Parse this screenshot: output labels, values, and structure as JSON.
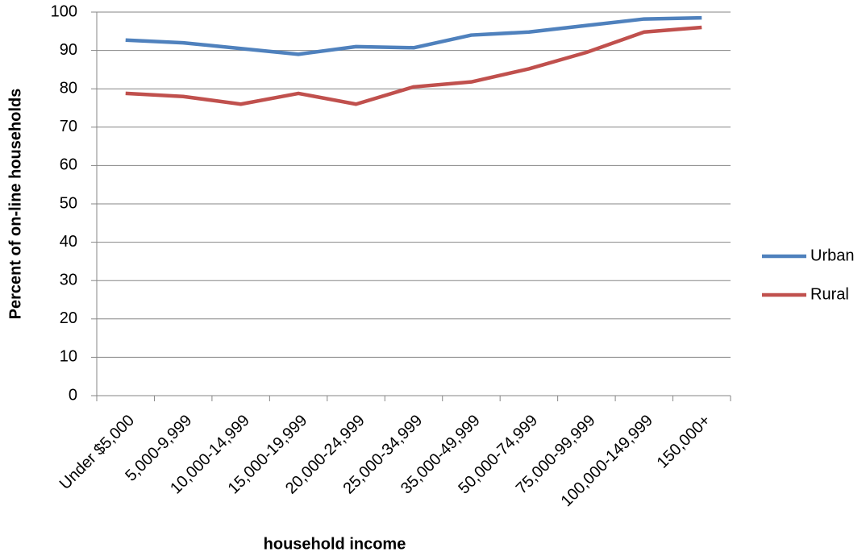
{
  "chart_data": {
    "type": "line",
    "xlabel": "household income",
    "ylabel": "Percent of on-line households",
    "categories": [
      "Under $5,000",
      "5,000-9,999",
      "10,000-14,999",
      "15,000-19,999",
      "20,000-24,999",
      "25,000-34,999",
      "35,000-49,999",
      "50,000-74,999",
      "75,000-99,999",
      "100,000-149,999",
      "150,000+"
    ],
    "series": [
      {
        "name": "Urban",
        "color": "#4f81bd",
        "values": [
          92.7,
          92,
          90.5,
          89,
          91,
          90.7,
          94,
          94.8,
          96.5,
          98.2,
          98.5
        ]
      },
      {
        "name": "Rural",
        "color": "#c0504d",
        "values": [
          78.8,
          78,
          76,
          78.8,
          76,
          80.5,
          81.8,
          85.2,
          89.5,
          94.8,
          96
        ]
      }
    ],
    "ylim": [
      0,
      100
    ],
    "yticks": [
      0,
      10,
      20,
      30,
      40,
      50,
      60,
      70,
      80,
      90,
      100
    ],
    "grid": true,
    "legend": "right"
  }
}
